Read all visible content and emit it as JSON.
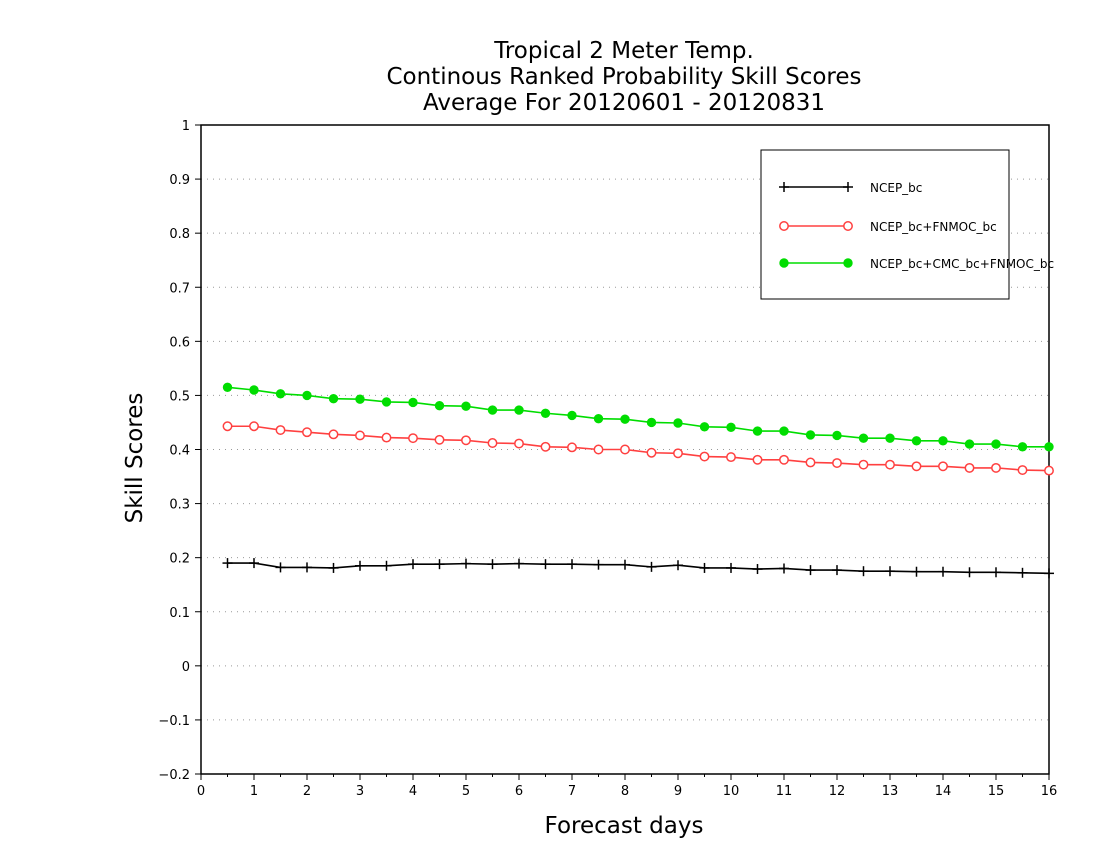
{
  "chart_data": {
    "type": "line",
    "title_lines": [
      "Tropical 2 Meter Temp.",
      "Continous Ranked Probability Skill Scores",
      "Average For 20120601 - 20120831"
    ],
    "xlabel": "Forecast days",
    "ylabel": "Skill Scores",
    "xlim": [
      0,
      16
    ],
    "ylim": [
      -0.2,
      1
    ],
    "x_ticks": [
      "0",
      "1",
      "2",
      "3",
      "4",
      "5",
      "6",
      "7",
      "8",
      "9",
      "10",
      "11",
      "12",
      "13",
      "14",
      "15",
      "16"
    ],
    "y_ticks": [
      "1",
      "0.9",
      "0.8",
      "0.7",
      "0.6",
      "0.5",
      "0.4",
      "0.3",
      "0.2",
      "0.1",
      "0",
      "-0.1",
      "-0.2"
    ],
    "y_tick_values": [
      1,
      0.9,
      0.8,
      0.7,
      0.6,
      0.5,
      0.4,
      0.3,
      0.2,
      0.1,
      0,
      -0.1,
      -0.2
    ],
    "grid": "horizontal dotted",
    "legend_position": "top-right",
    "x": [
      0.5,
      1,
      1.5,
      2,
      2.5,
      3,
      3.5,
      4,
      4.5,
      5,
      5.5,
      6,
      6.5,
      7,
      7.5,
      8,
      8.5,
      9,
      9.5,
      10,
      10.5,
      11,
      11.5,
      12,
      12.5,
      13,
      13.5,
      14,
      14.5,
      15,
      15.5,
      16
    ],
    "series": [
      {
        "name": "NCEP_bc",
        "color": "#000000",
        "marker": "plus",
        "values": [
          0.19,
          0.19,
          0.182,
          0.182,
          0.181,
          0.185,
          0.185,
          0.188,
          0.188,
          0.189,
          0.188,
          0.189,
          0.188,
          0.188,
          0.187,
          0.187,
          0.183,
          0.186,
          0.181,
          0.181,
          0.179,
          0.18,
          0.177,
          0.177,
          0.175,
          0.175,
          0.174,
          0.174,
          0.173,
          0.173,
          0.172,
          0.171
        ]
      },
      {
        "name": "NCEP_bc+FNMOC_bc",
        "color": "#ff4040",
        "marker": "open-circle",
        "values": [
          0.443,
          0.443,
          0.436,
          0.432,
          0.428,
          0.426,
          0.422,
          0.421,
          0.418,
          0.417,
          0.412,
          0.411,
          0.405,
          0.404,
          0.4,
          0.4,
          0.394,
          0.393,
          0.387,
          0.386,
          0.381,
          0.381,
          0.376,
          0.375,
          0.372,
          0.372,
          0.369,
          0.369,
          0.366,
          0.366,
          0.362,
          0.361
        ]
      },
      {
        "name": "NCEP_bc+CMC_bc+FNMOC_bc",
        "color": "#00dd00",
        "marker": "filled-circle",
        "values": [
          0.515,
          0.51,
          0.503,
          0.5,
          0.494,
          0.493,
          0.488,
          0.487,
          0.481,
          0.48,
          0.473,
          0.473,
          0.467,
          0.463,
          0.457,
          0.456,
          0.45,
          0.449,
          0.442,
          0.441,
          0.434,
          0.434,
          0.427,
          0.426,
          0.421,
          0.421,
          0.416,
          0.416,
          0.41,
          0.41,
          0.405,
          0.405
        ]
      }
    ]
  }
}
